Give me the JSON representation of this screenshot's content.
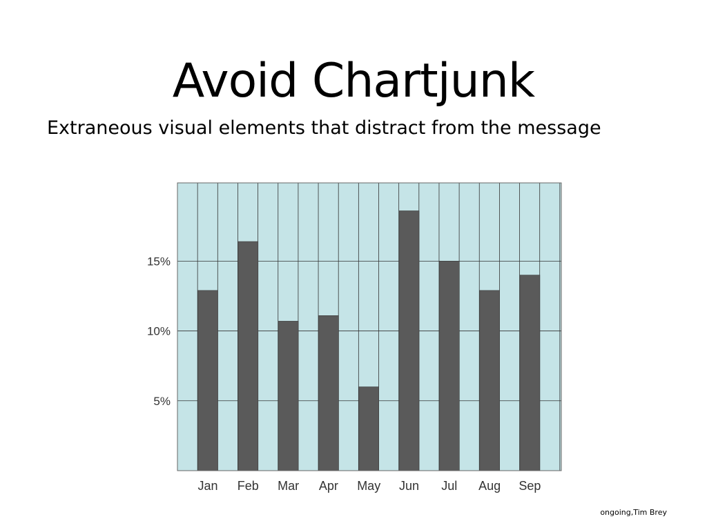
{
  "slide": {
    "title": "Avoid Chartjunk",
    "subtitle": "Extraneous visual elements that distract from the message",
    "credit": "ongoing,Tim Brey"
  },
  "colors": {
    "plot_background": "#c5e4e7",
    "bar": "#5a5a5a",
    "grid": "#333333"
  },
  "chart_data": {
    "type": "bar",
    "categories": [
      "Jan",
      "Feb",
      "Mar",
      "Apr",
      "May",
      "Jun",
      "Jul",
      "Aug",
      "Sep"
    ],
    "values": [
      12.9,
      16.4,
      10.7,
      11.1,
      6.0,
      18.6,
      15.0,
      12.9,
      14.0
    ],
    "ylim": [
      0,
      20.6
    ],
    "yticks": [
      5,
      10,
      15
    ],
    "ytick_labels": [
      "5%",
      "10%",
      "15%"
    ],
    "grid": true
  }
}
